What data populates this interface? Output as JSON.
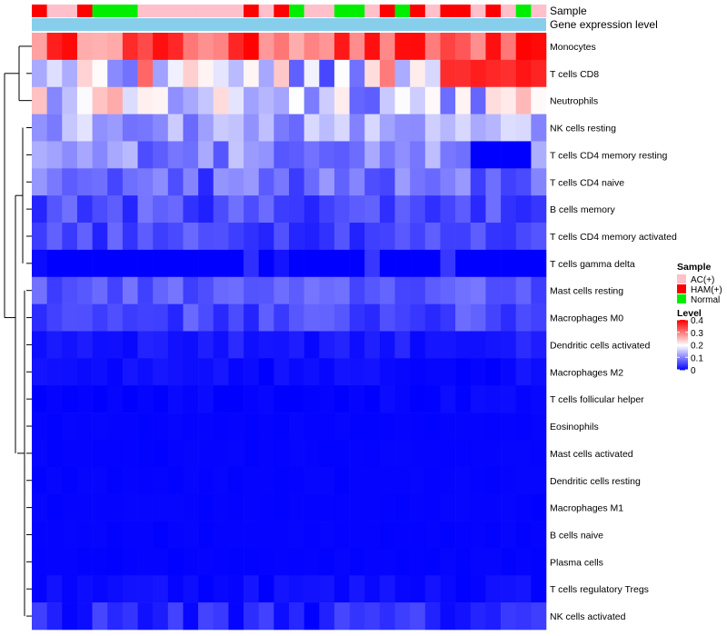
{
  "chart_data": {
    "type": "heatmap",
    "title": "",
    "row_labels": [
      "Monocytes",
      "T cells CD8",
      "Neutrophils",
      "NK cells resting",
      "T cells CD4 memory resting",
      "T cells CD4 naive",
      "B cells memory",
      "T cells CD4 memory activated",
      "T cells gamma delta",
      "Mast cells resting",
      "Macrophages M0",
      "Dendritic cells activated",
      "Macrophages M2",
      "T cells follicular helper",
      "Eosinophils",
      "Mast cells activated",
      "Dendritic cells resting",
      "Macrophages M1",
      "B cells naive",
      "Plasma cells",
      "T cells regulatory  Tregs",
      "NK cells activated"
    ],
    "annotation_tracks": [
      {
        "name": "Sample",
        "type": "categorical"
      },
      {
        "name": "Gene expression level",
        "type": "continuous"
      }
    ],
    "sample_groups": [
      "HAM(+)",
      "AC(+)",
      "AC(+)",
      "HAM(+)",
      "Normal",
      "Normal",
      "Normal",
      "AC(+)",
      "AC(+)",
      "AC(+)",
      "AC(+)",
      "AC(+)",
      "AC(+)",
      "AC(+)",
      "HAM(+)",
      "AC(+)",
      "HAM(+)",
      "Normal",
      "AC(+)",
      "AC(+)",
      "Normal",
      "Normal",
      "AC(+)",
      "HAM(+)",
      "Normal",
      "HAM(+)",
      "AC(+)",
      "HAM(+)",
      "HAM(+)",
      "AC(+)",
      "HAM(+)",
      "AC(+)",
      "Normal",
      "AC(+)"
    ],
    "row_base_values": [
      0.33,
      0.18,
      0.17,
      0.13,
      0.11,
      0.08,
      0.06,
      0.055,
      0.03,
      0.07,
      0.055,
      0.02,
      0.008,
      0.004,
      0.003,
      0.003,
      0.003,
      0.003,
      0.003,
      0.003,
      0.01,
      0.03
    ],
    "row_variation": [
      0.07,
      0.14,
      0.1,
      0.05,
      0.05,
      0.05,
      0.035,
      0.03,
      0.025,
      0.025,
      0.03,
      0.015,
      0.01,
      0.006,
      0.002,
      0.002,
      0.002,
      0.002,
      0.002,
      0.002,
      0.01,
      0.03
    ],
    "value_range": [
      0,
      0.4
    ],
    "color_scale": {
      "low": "#0000FF",
      "mid": "#FFFFFF",
      "high": "#FF0000",
      "midpoint": 0.2
    },
    "group_colors": {
      "AC(+)": "#FFC0CB",
      "HAM(+)": "#FF0000",
      "Normal": "#00EE00"
    },
    "expression_track_color": "#87CEEB",
    "legend": {
      "sample_title": "Sample",
      "sample_items": [
        "AC(+)",
        "HAM(+)",
        "Normal"
      ],
      "level_title": "Level",
      "level_ticks": [
        "0.4",
        "0.3",
        "0.2",
        "0.1",
        "0"
      ],
      "placement": "right"
    },
    "dendrogram": "rows"
  }
}
